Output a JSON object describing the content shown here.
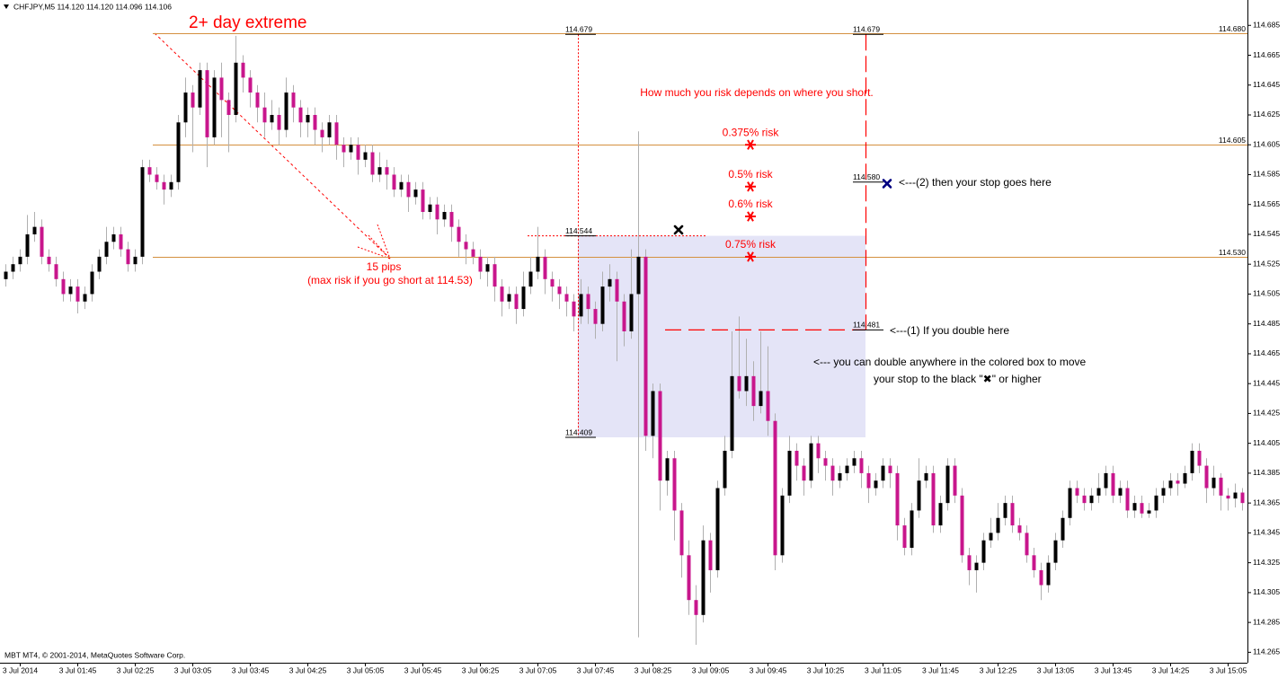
{
  "chart_data": {
    "type": "candlestick",
    "title": "CHFJPY,M5  114.120 114.120 114.096 114.106",
    "footer": "MBT MT4, © 2001-2014, MetaQuotes Software Corp.",
    "categories": [
      null,
      null,
      "3 Jul 2014",
      null,
      null,
      null,
      null,
      null,
      null,
      null,
      "3 Jul 01:45",
      null,
      null,
      null,
      null,
      null,
      null,
      null,
      "3 Jul 02:25",
      null,
      null,
      null,
      null,
      null,
      null,
      null,
      "3 Jul 03:05",
      null,
      null,
      null,
      null,
      null,
      null,
      null,
      "3 Jul 03:45",
      null,
      null,
      null,
      null,
      null,
      null,
      null,
      "3 Jul 04:25",
      null,
      null,
      null,
      null,
      null,
      null,
      null,
      "3 Jul 05:05",
      null,
      null,
      null,
      null,
      null,
      null,
      null,
      "3 Jul 05:45",
      null,
      null,
      null,
      null,
      null,
      null,
      null,
      "3 Jul 06:25",
      null,
      null,
      null,
      null,
      null,
      null,
      null,
      "3 Jul 07:05",
      null,
      null,
      null,
      null,
      null,
      null,
      null,
      "3 Jul 07:45",
      null,
      null,
      null,
      null,
      null,
      null,
      null,
      "3 Jul 08:25",
      null,
      null,
      null,
      null,
      null,
      null,
      null,
      "3 Jul 09:05",
      null,
      null,
      null,
      null,
      null,
      null,
      null,
      "3 Jul 09:45",
      null,
      null,
      null,
      null,
      null,
      null,
      null,
      "3 Jul 10:25",
      null,
      null,
      null,
      null,
      null,
      null,
      null,
      "3 Jul 11:05",
      null,
      null,
      null,
      null,
      null,
      null,
      null,
      "3 Jul 11:45",
      null,
      null,
      null,
      null,
      null,
      null,
      null,
      "3 Jul 12:25",
      null,
      null,
      null,
      null,
      null,
      null,
      null,
      "3 Jul 13:05",
      null,
      null,
      null,
      null,
      null,
      null,
      null,
      "3 Jul 13:45",
      null,
      null,
      null,
      null,
      null,
      null,
      null,
      "3 Jul 14:25",
      null,
      null,
      null,
      null,
      null,
      null,
      null,
      "3 Jul 15:05",
      null,
      null
    ],
    "ohlc_order": [
      "open",
      "high",
      "low",
      "close"
    ],
    "ohlc": [
      [
        114.515,
        114.525,
        114.51,
        114.52
      ],
      [
        114.52,
        114.53,
        114.515,
        114.525
      ],
      [
        114.525,
        114.535,
        114.52,
        114.53
      ],
      [
        114.53,
        114.558,
        114.525,
        114.545
      ],
      [
        114.545,
        114.56,
        114.54,
        114.55
      ],
      [
        114.55,
        114.555,
        114.525,
        114.53
      ],
      [
        114.53,
        114.535,
        114.52,
        114.525
      ],
      [
        114.525,
        114.53,
        114.51,
        114.515
      ],
      [
        114.515,
        114.52,
        114.5,
        114.505
      ],
      [
        114.505,
        114.515,
        114.5,
        114.51
      ],
      [
        114.51,
        114.515,
        114.492,
        114.5
      ],
      [
        114.5,
        114.51,
        114.495,
        114.505
      ],
      [
        114.505,
        114.525,
        114.5,
        114.52
      ],
      [
        114.52,
        114.535,
        114.515,
        114.53
      ],
      [
        114.53,
        114.55,
        114.525,
        114.54
      ],
      [
        114.54,
        114.55,
        114.535,
        114.545
      ],
      [
        114.545,
        114.55,
        114.53,
        114.535
      ],
      [
        114.535,
        114.54,
        114.52,
        114.525
      ],
      [
        114.525,
        114.535,
        114.52,
        114.53
      ],
      [
        114.53,
        114.595,
        114.525,
        114.59
      ],
      [
        114.59,
        114.595,
        114.58,
        114.585
      ],
      [
        114.585,
        114.59,
        114.575,
        114.58
      ],
      [
        114.58,
        114.585,
        114.565,
        114.575
      ],
      [
        114.575,
        114.585,
        114.57,
        114.58
      ],
      [
        114.58,
        114.625,
        114.575,
        114.62
      ],
      [
        114.62,
        114.65,
        114.61,
        114.64
      ],
      [
        114.64,
        114.645,
        114.6,
        114.63
      ],
      [
        114.63,
        114.66,
        114.625,
        114.655
      ],
      [
        114.655,
        114.66,
        114.59,
        114.61
      ],
      [
        114.61,
        114.655,
        114.605,
        114.65
      ],
      [
        114.65,
        114.66,
        114.61,
        114.635
      ],
      [
        114.635,
        114.64,
        114.6,
        114.625
      ],
      [
        114.625,
        114.678,
        114.62,
        114.66
      ],
      [
        114.66,
        114.665,
        114.64,
        114.65
      ],
      [
        114.65,
        114.655,
        114.63,
        114.64
      ],
      [
        114.64,
        114.645,
        114.62,
        114.63
      ],
      [
        114.63,
        114.64,
        114.61,
        114.62
      ],
      [
        114.62,
        114.635,
        114.615,
        114.625
      ],
      [
        114.625,
        114.63,
        114.605,
        114.615
      ],
      [
        114.615,
        114.65,
        114.61,
        114.64
      ],
      [
        114.64,
        114.645,
        114.62,
        114.63
      ],
      [
        114.63,
        114.635,
        114.61,
        114.62
      ],
      [
        114.62,
        114.63,
        114.61,
        114.625
      ],
      [
        114.625,
        114.63,
        114.605,
        114.615
      ],
      [
        114.615,
        114.62,
        114.6,
        114.61
      ],
      [
        114.61,
        114.625,
        114.605,
        114.62
      ],
      [
        114.62,
        114.625,
        114.595,
        114.605
      ],
      [
        114.605,
        114.61,
        114.59,
        114.6
      ],
      [
        114.6,
        114.61,
        114.595,
        114.605
      ],
      [
        114.605,
        114.61,
        114.585,
        114.595
      ],
      [
        114.595,
        114.605,
        114.59,
        114.6
      ],
      [
        114.6,
        114.605,
        114.58,
        114.585
      ],
      [
        114.585,
        114.6,
        114.58,
        114.59
      ],
      [
        114.59,
        114.595,
        114.575,
        114.585
      ],
      [
        114.585,
        114.59,
        114.57,
        114.575
      ],
      [
        114.575,
        114.585,
        114.57,
        114.58
      ],
      [
        114.58,
        114.585,
        114.56,
        114.57
      ],
      [
        114.57,
        114.58,
        114.565,
        114.575
      ],
      [
        114.575,
        114.58,
        114.555,
        114.56
      ],
      [
        114.56,
        114.57,
        114.555,
        114.565
      ],
      [
        114.565,
        114.57,
        114.545,
        114.555
      ],
      [
        114.555,
        114.565,
        114.55,
        114.56
      ],
      [
        114.56,
        114.565,
        114.54,
        114.55
      ],
      [
        114.55,
        114.555,
        114.53,
        114.54
      ],
      [
        114.54,
        114.545,
        114.525,
        114.535
      ],
      [
        114.535,
        114.54,
        114.525,
        114.53
      ],
      [
        114.53,
        114.535,
        114.515,
        114.52
      ],
      [
        114.52,
        114.53,
        114.51,
        114.525
      ],
      [
        114.525,
        114.53,
        114.5,
        114.51
      ],
      [
        114.51,
        114.515,
        114.49,
        114.5
      ],
      [
        114.5,
        114.51,
        114.495,
        114.505
      ],
      [
        114.505,
        114.51,
        114.485,
        114.495
      ],
      [
        114.495,
        114.52,
        114.49,
        114.51
      ],
      [
        114.51,
        114.53,
        114.505,
        114.52
      ],
      [
        114.52,
        114.55,
        114.515,
        114.53
      ],
      [
        114.53,
        114.535,
        114.505,
        114.515
      ],
      [
        114.515,
        114.52,
        114.5,
        114.51
      ],
      [
        114.51,
        114.515,
        114.495,
        114.505
      ],
      [
        114.505,
        114.51,
        114.49,
        114.5
      ],
      [
        114.5,
        114.505,
        114.48,
        114.49
      ],
      [
        114.49,
        114.515,
        114.485,
        114.505
      ],
      [
        114.505,
        114.51,
        114.485,
        114.495
      ],
      [
        114.495,
        114.5,
        114.475,
        114.485
      ],
      [
        114.485,
        114.52,
        114.48,
        114.51
      ],
      [
        114.51,
        114.525,
        114.5,
        114.515
      ],
      [
        114.515,
        114.52,
        114.46,
        114.5
      ],
      [
        114.5,
        114.505,
        114.47,
        114.48
      ],
      [
        114.48,
        114.535,
        114.475,
        114.505
      ],
      [
        114.505,
        114.614,
        114.275,
        114.53
      ],
      [
        114.53,
        114.535,
        114.4,
        114.41
      ],
      [
        114.41,
        114.445,
        114.395,
        114.44
      ],
      [
        114.44,
        114.445,
        114.36,
        114.38
      ],
      [
        114.38,
        114.4,
        114.37,
        114.395
      ],
      [
        114.395,
        114.4,
        114.34,
        114.36
      ],
      [
        114.36,
        114.365,
        114.315,
        114.33
      ],
      [
        114.33,
        114.34,
        114.29,
        114.3
      ],
      [
        114.3,
        114.31,
        114.27,
        114.29
      ],
      [
        114.29,
        114.35,
        114.285,
        114.34
      ],
      [
        114.34,
        114.345,
        114.305,
        114.32
      ],
      [
        114.32,
        114.38,
        114.315,
        114.375
      ],
      [
        114.375,
        114.41,
        114.37,
        114.4
      ],
      [
        114.4,
        114.48,
        114.395,
        114.45
      ],
      [
        114.45,
        114.49,
        114.435,
        114.44
      ],
      [
        114.44,
        114.475,
        114.43,
        114.45
      ],
      [
        114.45,
        114.46,
        114.42,
        114.43
      ],
      [
        114.43,
        114.48,
        114.425,
        114.44
      ],
      [
        114.44,
        114.47,
        114.41,
        114.42
      ],
      [
        114.42,
        114.425,
        114.32,
        114.33
      ],
      [
        114.33,
        114.375,
        114.325,
        114.37
      ],
      [
        114.37,
        114.41,
        114.365,
        114.4
      ],
      [
        114.4,
        114.405,
        114.38,
        114.39
      ],
      [
        114.39,
        114.395,
        114.37,
        114.38
      ],
      [
        114.38,
        114.41,
        114.375,
        114.405
      ],
      [
        114.405,
        114.41,
        114.385,
        114.395
      ],
      [
        114.395,
        114.4,
        114.38,
        114.39
      ],
      [
        114.39,
        114.395,
        114.37,
        114.38
      ],
      [
        114.38,
        114.39,
        114.375,
        114.385
      ],
      [
        114.385,
        114.395,
        114.38,
        114.39
      ],
      [
        114.39,
        114.4,
        114.385,
        114.395
      ],
      [
        114.395,
        114.4,
        114.375,
        114.385
      ],
      [
        114.385,
        114.39,
        114.365,
        114.375
      ],
      [
        114.375,
        114.385,
        114.37,
        114.38
      ],
      [
        114.38,
        114.395,
        114.375,
        114.39
      ],
      [
        114.39,
        114.395,
        114.375,
        114.385
      ],
      [
        114.385,
        114.39,
        114.34,
        114.35
      ],
      [
        114.35,
        114.355,
        114.33,
        114.335
      ],
      [
        114.335,
        114.365,
        114.33,
        114.36
      ],
      [
        114.36,
        114.395,
        114.355,
        114.38
      ],
      [
        114.38,
        114.39,
        114.375,
        114.385
      ],
      [
        114.385,
        114.39,
        114.345,
        114.35
      ],
      [
        114.35,
        114.37,
        114.345,
        114.365
      ],
      [
        114.365,
        114.395,
        114.36,
        114.39
      ],
      [
        114.39,
        114.395,
        114.365,
        114.37
      ],
      [
        114.37,
        114.375,
        114.325,
        114.33
      ],
      [
        114.33,
        114.335,
        114.31,
        114.32
      ],
      [
        114.32,
        114.33,
        114.305,
        114.325
      ],
      [
        114.325,
        114.345,
        114.32,
        114.34
      ],
      [
        114.34,
        114.355,
        114.335,
        114.345
      ],
      [
        114.345,
        114.365,
        114.34,
        114.355
      ],
      [
        114.355,
        114.37,
        114.35,
        114.365
      ],
      [
        114.365,
        114.37,
        114.345,
        114.35
      ],
      [
        114.35,
        114.355,
        114.34,
        114.345
      ],
      [
        114.345,
        114.35,
        114.325,
        114.33
      ],
      [
        114.33,
        114.335,
        114.315,
        114.32
      ],
      [
        114.32,
        114.325,
        114.3,
        114.31
      ],
      [
        114.31,
        114.33,
        114.305,
        114.325
      ],
      [
        114.325,
        114.345,
        114.32,
        114.34
      ],
      [
        114.34,
        114.36,
        114.335,
        114.355
      ],
      [
        114.355,
        114.38,
        114.35,
        114.375
      ],
      [
        114.375,
        114.38,
        114.365,
        114.37
      ],
      [
        114.37,
        114.375,
        114.36,
        114.365
      ],
      [
        114.365,
        114.375,
        114.36,
        114.37
      ],
      [
        114.37,
        114.385,
        114.365,
        114.375
      ],
      [
        114.375,
        114.39,
        114.37,
        114.385
      ],
      [
        114.385,
        114.39,
        114.365,
        114.37
      ],
      [
        114.37,
        114.38,
        114.365,
        114.375
      ],
      [
        114.375,
        114.38,
        114.355,
        114.36
      ],
      [
        114.36,
        114.37,
        114.355,
        114.365
      ],
      [
        114.365,
        114.37,
        114.355,
        114.358
      ],
      [
        114.358,
        114.365,
        114.355,
        114.36
      ],
      [
        114.36,
        114.375,
        114.355,
        114.37
      ],
      [
        114.37,
        114.38,
        114.365,
        114.375
      ],
      [
        114.375,
        114.385,
        114.37,
        114.38
      ],
      [
        114.38,
        114.385,
        114.37,
        114.378
      ],
      [
        114.378,
        114.39,
        114.375,
        114.385
      ],
      [
        114.385,
        114.405,
        114.38,
        114.4
      ],
      [
        114.4,
        114.405,
        114.385,
        114.39
      ],
      [
        114.39,
        114.395,
        114.365,
        114.375
      ],
      [
        114.375,
        114.39,
        114.37,
        114.382
      ],
      [
        114.382,
        114.385,
        114.36,
        114.37
      ],
      [
        114.37,
        114.375,
        114.36,
        114.368
      ],
      [
        114.368,
        114.378,
        114.362,
        114.372
      ],
      [
        114.372,
        114.375,
        114.36,
        114.365
      ]
    ],
    "up_color": "#000000",
    "down_color": "#c8168c",
    "ylim": [
      114.258,
      114.702
    ],
    "yticks": [
      114.685,
      114.665,
      114.645,
      114.625,
      114.605,
      114.585,
      114.565,
      114.545,
      114.525,
      114.505,
      114.485,
      114.465,
      114.445,
      114.425,
      114.405,
      114.385,
      114.365,
      114.345,
      114.325,
      114.305,
      114.285,
      114.265
    ],
    "grid": false,
    "levels": [
      {
        "value": 114.68,
        "label": "114.680"
      },
      {
        "value": 114.605,
        "label": "114.605"
      },
      {
        "value": 114.53,
        "label": "114.530"
      }
    ],
    "level_color": "#d4903f",
    "marked_prices": [
      114.679,
      114.679,
      114.544,
      114.409,
      {
        "value": 114.58,
        "label": "114.580"
      },
      114.481
    ],
    "box_color": "#e4e4f7",
    "annotation_color": "#ff0000",
    "risk_markers": [
      {
        "label": "0.375% risk",
        "price": 114.605
      },
      {
        "label": "0.5% risk",
        "price": 114.577
      },
      {
        "label": "0.6% risk",
        "price": 114.557
      },
      {
        "label": "0.75% risk",
        "price": 114.53
      }
    ],
    "x_marks": [
      {
        "price": 114.548,
        "color": "#000000"
      },
      {
        "price": 114.579,
        "color": "#000080"
      }
    ],
    "notes": {
      "extreme": "2+ day extreme",
      "headline": "How much you risk depends on where you short.",
      "pips": "15 pips",
      "max_risk": "(max risk if you go short at 114.53)",
      "stop": "<---(2) then your stop goes here",
      "double": "<---(1) If you double here",
      "anywhere": "<--- you can double anywhere in the colored box to move",
      "black_x": "your stop to the black \"✖\" or higher"
    }
  }
}
